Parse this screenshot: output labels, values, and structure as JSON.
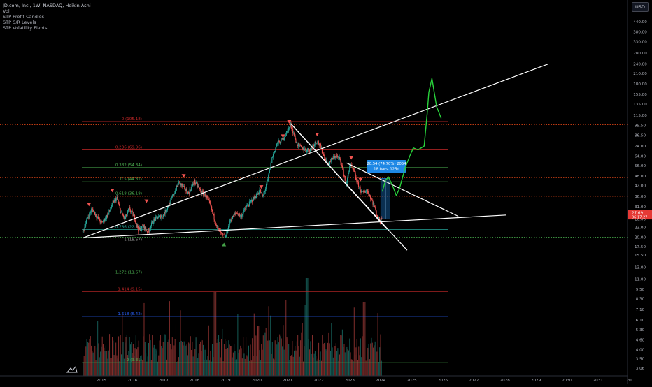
{
  "header": {
    "symbol_line": "JD.com, Inc., 1W, NASDAQ, Heikin Ashi",
    "indicators": [
      "Vol",
      "STP Profit Candles",
      "STP S/R Levels",
      "STP Volatility Pivots"
    ],
    "currency": "USD"
  },
  "price_tag": {
    "price": "27.69",
    "countdown": "06:17:27"
  },
  "measure_box": {
    "line1": "20.54 (74.70%) 2054",
    "line2": "18 bars, 125d"
  },
  "colors": {
    "background": "#000000",
    "fib_red": "#c62828",
    "fib_green": "#4caf50",
    "fib_blue": "#2962ff",
    "sr_orange": "#d84315",
    "sr_green": "#43a047",
    "trendline": "#ffffff",
    "projection": "#28d13b",
    "up_candle": "#26a69a",
    "down_candle": "#ef5350",
    "price_tag": "#e53935",
    "measure_box": "#1e88e5"
  },
  "chart_data": {
    "type": "candlestick",
    "title": "JD.com, Inc., 1W, NASDAQ, Heikin Ashi",
    "y_scale": "log",
    "ylim": [
      3.0,
      560
    ],
    "xlim": [
      2014.35,
      2032.0
    ],
    "x_ticks": [
      "2015",
      "2016",
      "2017",
      "2018",
      "2019",
      "2020",
      "2021",
      "2022",
      "2023",
      "2024",
      "2025",
      "2026",
      "2027",
      "2028",
      "2029",
      "2030",
      "2031",
      "20"
    ],
    "y_ticks": [
      3.06,
      3.5,
      4.0,
      4.6,
      5.3,
      6.1,
      7.1,
      8.3,
      9.5,
      11.0,
      13.0,
      15.5,
      17.5,
      20.0,
      23.0,
      26.0,
      31.0,
      36.0,
      42.0,
      48.0,
      56.0,
      64.0,
      74.0,
      86.5,
      99.5,
      115.0,
      135.0,
      155.0,
      180.0,
      210.0,
      240.0,
      280.0,
      330.0,
      380.0,
      440.0
    ],
    "y_tick_labels": [
      "3.06",
      "3.50",
      "4.00",
      "4.60",
      "5.30",
      "6.10",
      "7.10",
      "8.30",
      "9.50",
      "11.00",
      "13.00",
      "15.50",
      "17.50",
      "20.00",
      "23.00",
      "26.00",
      "31.00",
      "36.00",
      "42.00",
      "48.00",
      "56.00",
      "64.00",
      "74.00",
      "86.50",
      "99.50",
      "115.00",
      "135.00",
      "155.00",
      "180.00",
      "210.00",
      "240.00",
      "280.00",
      "330.00",
      "380.00",
      "440.00"
    ],
    "last_price": 27.69,
    "price_path": [
      [
        2014.4,
        21.5
      ],
      [
        2014.55,
        26.5
      ],
      [
        2014.7,
        30.0
      ],
      [
        2014.9,
        26.0
      ],
      [
        2015.0,
        24.5
      ],
      [
        2015.2,
        27.5
      ],
      [
        2015.4,
        33.5
      ],
      [
        2015.5,
        35.0
      ],
      [
        2015.6,
        29.5
      ],
      [
        2015.75,
        26.0
      ],
      [
        2015.9,
        30.0
      ],
      [
        2016.05,
        27.0
      ],
      [
        2016.2,
        22.0
      ],
      [
        2016.35,
        23.5
      ],
      [
        2016.5,
        21.5
      ],
      [
        2016.65,
        25.0
      ],
      [
        2016.8,
        26.5
      ],
      [
        2017.0,
        27.5
      ],
      [
        2017.2,
        32.5
      ],
      [
        2017.35,
        38.0
      ],
      [
        2017.5,
        44.0
      ],
      [
        2017.65,
        40.5
      ],
      [
        2017.8,
        37.5
      ],
      [
        2018.0,
        44.5
      ],
      [
        2018.1,
        42.0
      ],
      [
        2018.2,
        38.5
      ],
      [
        2018.35,
        36.5
      ],
      [
        2018.5,
        32.0
      ],
      [
        2018.6,
        27.5
      ],
      [
        2018.75,
        22.5
      ],
      [
        2018.9,
        20.5
      ],
      [
        2019.0,
        20.0
      ],
      [
        2019.15,
        25.5
      ],
      [
        2019.35,
        28.5
      ],
      [
        2019.5,
        27.0
      ],
      [
        2019.65,
        30.5
      ],
      [
        2019.8,
        33.0
      ],
      [
        2020.0,
        36.5
      ],
      [
        2020.1,
        39.5
      ],
      [
        2020.2,
        35.5
      ],
      [
        2020.35,
        44.5
      ],
      [
        2020.5,
        62.5
      ],
      [
        2020.65,
        76.0
      ],
      [
        2020.8,
        80.0
      ],
      [
        2020.95,
        88.0
      ],
      [
        2021.1,
        101.0
      ],
      [
        2021.2,
        87.0
      ],
      [
        2021.3,
        76.0
      ],
      [
        2021.45,
        72.0
      ],
      [
        2021.6,
        69.5
      ],
      [
        2021.75,
        71.0
      ],
      [
        2021.85,
        76.5
      ],
      [
        2021.95,
        80.0
      ],
      [
        2022.05,
        73.5
      ],
      [
        2022.2,
        62.0
      ],
      [
        2022.3,
        56.5
      ],
      [
        2022.4,
        60.5
      ],
      [
        2022.55,
        64.5
      ],
      [
        2022.7,
        61.0
      ],
      [
        2022.8,
        50.0
      ],
      [
        2022.9,
        42.5
      ],
      [
        2023.0,
        56.5
      ],
      [
        2023.1,
        53.5
      ],
      [
        2023.25,
        43.5
      ],
      [
        2023.4,
        37.5
      ],
      [
        2023.55,
        39.5
      ],
      [
        2023.7,
        34.5
      ],
      [
        2023.8,
        31.0
      ],
      [
        2023.9,
        26.5
      ],
      [
        2024.0,
        25.0
      ],
      [
        2024.05,
        27.69
      ]
    ],
    "volume_profile": "relative weekly volume bars shown along the bottom of the price pane",
    "fibonacci": [
      {
        "label": "0 (105.18)",
        "value": 105.18,
        "color": "#c62828"
      },
      {
        "label": "0.236 (69.96)",
        "value": 69.96,
        "color": "#c62828"
      },
      {
        "label": "0.382 (54.34)",
        "value": 54.34,
        "color": "#4caf50"
      },
      {
        "label": "0.5 (44.31)",
        "value": 44.31,
        "color": "#4caf50"
      },
      {
        "label": "0.618 (36.18)",
        "value": 36.18,
        "color": "#4caf50"
      },
      {
        "label": "0.786 (22.34)",
        "value": 22.34,
        "color": "#26a69a"
      },
      {
        "label": "1 (18.67)",
        "value": 18.67,
        "color": "#9e9e9e"
      },
      {
        "label": "1.272 (11.67)",
        "value": 11.67,
        "color": "#4caf50"
      },
      {
        "label": "1.414 (9.15)",
        "value": 9.15,
        "color": "#c62828"
      },
      {
        "label": "1.618 (6.42)",
        "value": 6.42,
        "color": "#2962ff"
      },
      {
        "label": "2 (3.31)",
        "value": 3.31,
        "color": "#4caf50"
      }
    ],
    "sr_levels": [
      {
        "value": 100.5,
        "color": "#d84315"
      },
      {
        "value": 64.0,
        "color": "#d84315"
      },
      {
        "value": 47.0,
        "color": "#d84315"
      },
      {
        "value": 36.0,
        "color": "#d84315"
      },
      {
        "value": 26.0,
        "color": "#43a047"
      },
      {
        "value": 20.0,
        "color": "#43a047"
      }
    ],
    "trendlines": [
      {
        "from": [
          2014.4,
          19.8
        ],
        "to": [
          2029.4,
          240.0
        ]
      },
      {
        "from": [
          2014.4,
          19.8
        ],
        "to": [
          2028.05,
          27.5
        ]
      },
      {
        "from": [
          2021.1,
          102.0
        ],
        "to": [
          2024.85,
          16.6
        ]
      },
      {
        "from": [
          2022.9,
          58.0
        ],
        "to": [
          2026.5,
          27.0
        ]
      },
      {
        "from": [
          2021.1,
          102.0
        ],
        "to": [
          2024.2,
          22.5
        ]
      }
    ],
    "projection_path": [
      [
        2024.05,
        38.5
      ],
      [
        2024.15,
        45.0
      ],
      [
        2024.25,
        47.5
      ],
      [
        2024.4,
        41.0
      ],
      [
        2024.5,
        36.5
      ],
      [
        2024.6,
        40.0
      ],
      [
        2024.7,
        47.0
      ],
      [
        2024.8,
        55.0
      ],
      [
        2024.95,
        65.0
      ],
      [
        2025.05,
        72.0
      ],
      [
        2025.2,
        70.0
      ],
      [
        2025.4,
        74.0
      ],
      [
        2025.5,
        120.0
      ],
      [
        2025.55,
        160.0
      ],
      [
        2025.65,
        195.0
      ],
      [
        2025.7,
        170.0
      ],
      [
        2025.8,
        130.0
      ],
      [
        2025.95,
        110.0
      ]
    ],
    "measure_range": {
      "x": [
        2024.0,
        2024.3
      ],
      "y": [
        26.0,
        46.5
      ]
    },
    "markers": {
      "down_triangles": [
        [
          2014.6,
          31.5
        ],
        [
          2015.35,
          38.5
        ],
        [
          2016.45,
          33.0
        ],
        [
          2017.65,
          47.5
        ],
        [
          2020.15,
          40.5
        ],
        [
          2020.85,
          84.0
        ],
        [
          2021.05,
          103.0
        ],
        [
          2021.95,
          86.0
        ],
        [
          2023.05,
          61.5
        ],
        [
          2023.35,
          45.0
        ]
      ],
      "up_triangles": [
        [
          2018.95,
          18.3
        ]
      ]
    }
  }
}
